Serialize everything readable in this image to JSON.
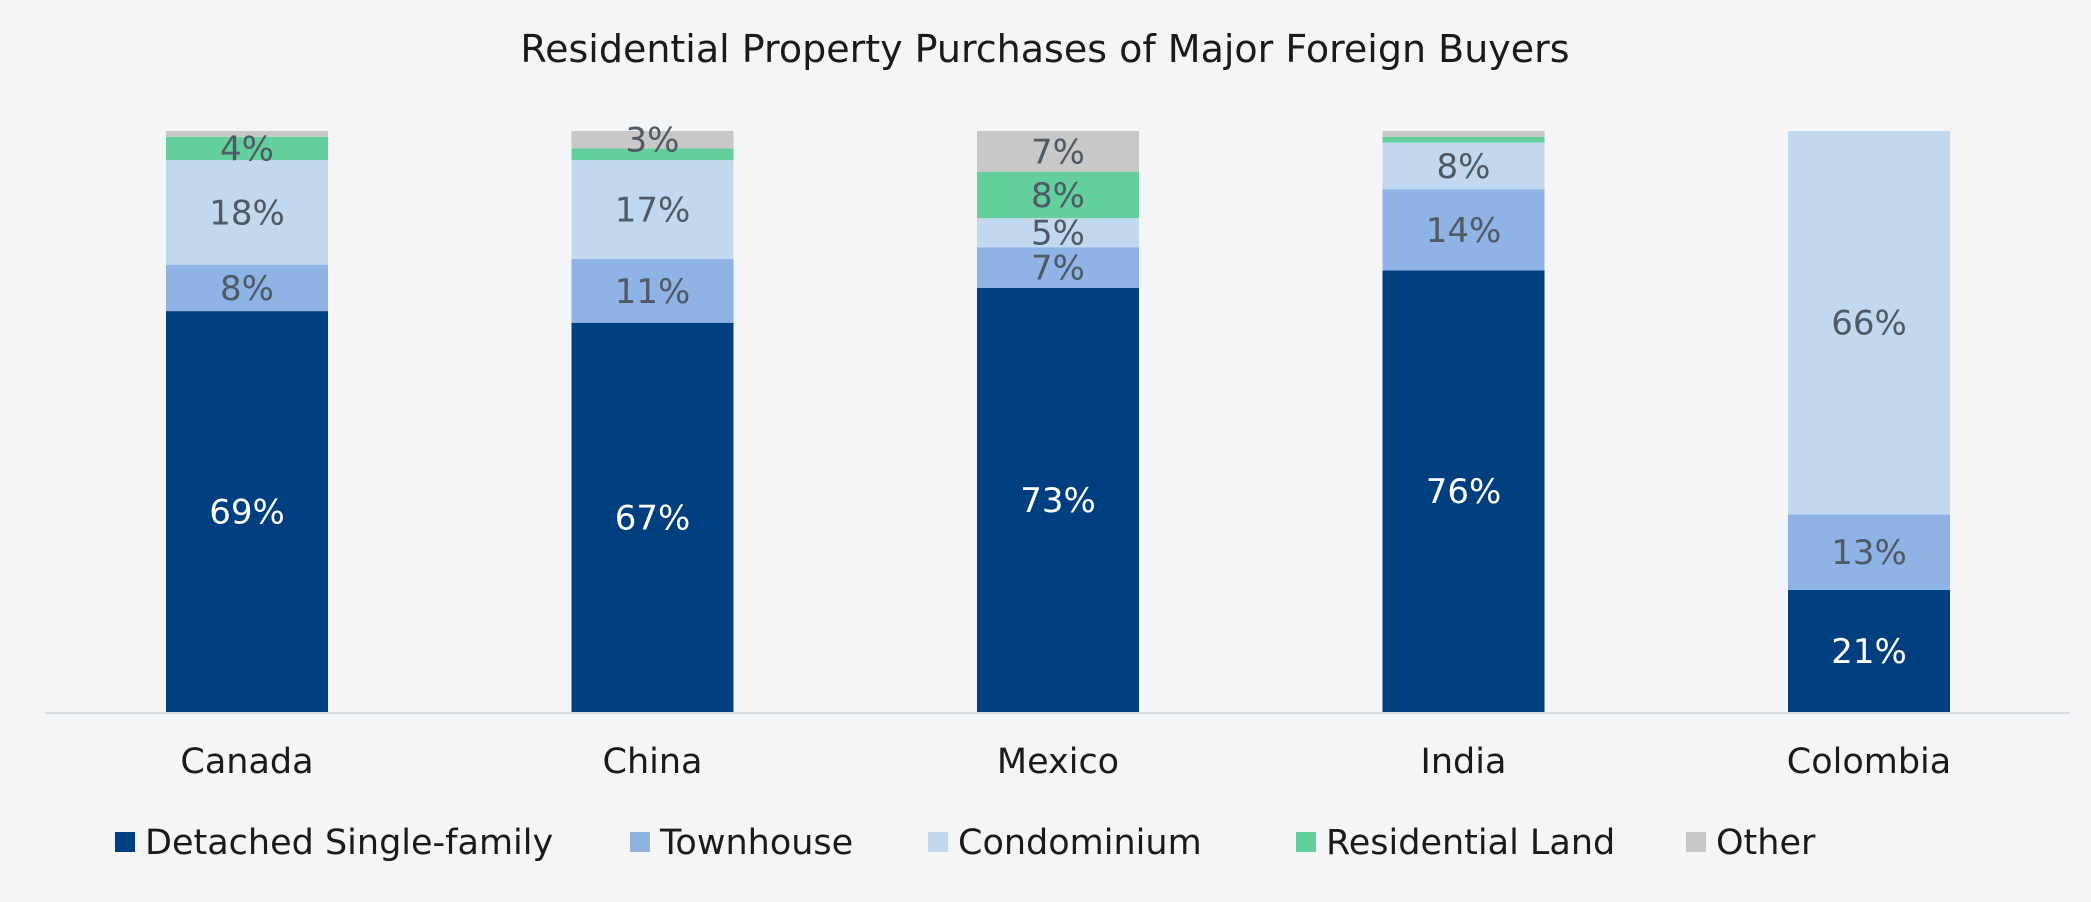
{
  "chart_data": {
    "type": "bar",
    "stacked": true,
    "title": "Residential Property Purchases of Major Foreign Buyers",
    "xlabel": "",
    "ylabel": "",
    "ylim": [
      0,
      100
    ],
    "grid": false,
    "legend_position": "bottom",
    "categories": [
      "Canada",
      "China",
      "Mexico",
      "India",
      "Colombia"
    ],
    "series": [
      {
        "name": "Detached Single-family",
        "color": "#003f7f",
        "values": [
          69,
          67,
          73,
          76,
          21
        ],
        "labels": [
          "69%",
          "67%",
          "73%",
          "76%",
          "21%"
        ],
        "label_color": "#ffffff"
      },
      {
        "name": "Townhouse",
        "color": "#8fb3e4",
        "values": [
          8,
          11,
          7,
          14,
          13
        ],
        "labels": [
          "8%",
          "11%",
          "7%",
          "14%",
          "13%"
        ],
        "label_color": "#505a66"
      },
      {
        "name": "Condominium",
        "color": "#c1d8ee",
        "values": [
          18,
          17,
          5,
          8,
          66
        ],
        "labels": [
          "18%",
          "17%",
          "5%",
          "8%",
          "66%"
        ],
        "label_color": "#505a66"
      },
      {
        "name": "Residential Land",
        "color": "#63cf9c",
        "values": [
          4,
          2,
          8,
          1,
          0
        ],
        "labels": [
          "4%",
          "",
          "8%",
          "",
          ""
        ],
        "label_color": "#505a66"
      },
      {
        "name": "Other",
        "color": "#c8c8c8",
        "values": [
          1,
          3,
          7,
          1,
          0
        ],
        "labels": [
          "",
          "3%",
          "7%",
          "",
          ""
        ],
        "label_color": "#505a66"
      }
    ]
  }
}
